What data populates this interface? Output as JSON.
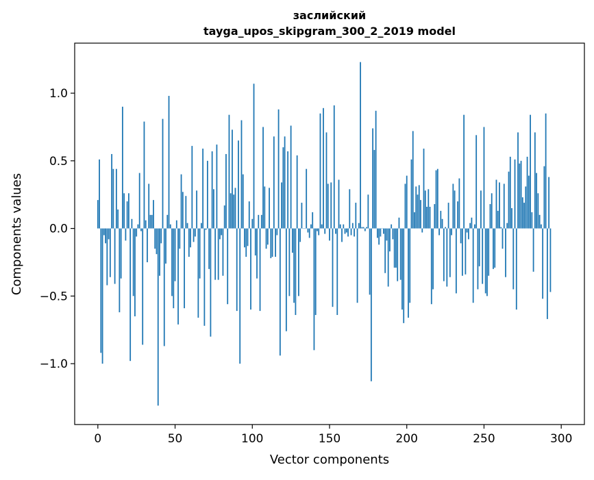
{
  "chart_data": {
    "type": "bar",
    "title_line1": "заслийский",
    "title_line2": "tayga_upos_skipgram_300_2_2019 model",
    "xlabel": "Vector components",
    "ylabel": "Components values",
    "xlim": [
      -15,
      315
    ],
    "ylim": [
      -1.45,
      1.37
    ],
    "xticks": [
      0,
      50,
      100,
      150,
      200,
      250,
      300
    ],
    "xtick_labels": [
      "0",
      "50",
      "100",
      "150",
      "200",
      "250",
      "300"
    ],
    "yticks": [
      -1.0,
      -0.5,
      0.0,
      0.5,
      1.0
    ],
    "ytick_labels": [
      "−1.0",
      "−0.5",
      "0.0",
      "0.5",
      "1.0"
    ],
    "grid": false,
    "bar_color": "#1f77b4",
    "values": [
      0.21,
      0.51,
      -0.92,
      -1.0,
      -0.05,
      -0.11,
      -0.42,
      -0.08,
      -0.36,
      0.55,
      0.44,
      -0.41,
      0.44,
      0.14,
      -0.62,
      -0.37,
      0.9,
      0.26,
      -0.09,
      0.2,
      0.26,
      -0.98,
      0.07,
      -0.5,
      -0.65,
      -0.06,
      0.03,
      0.41,
      -0.02,
      -0.86,
      0.79,
      0.06,
      -0.25,
      0.33,
      0.1,
      0.1,
      0.21,
      -0.15,
      -0.19,
      -1.31,
      -0.35,
      -0.11,
      0.81,
      -0.87,
      -0.26,
      0.1,
      0.98,
      0.03,
      -0.5,
      -0.59,
      -0.39,
      0.06,
      -0.71,
      -0.15,
      0.4,
      0.27,
      -0.59,
      0.24,
      0.04,
      -0.21,
      -0.14,
      0.61,
      -0.1,
      -0.06,
      0.28,
      -0.66,
      -0.37,
      0.04,
      0.59,
      -0.72,
      -0.01,
      0.5,
      -0.3,
      -0.8,
      0.57,
      0.29,
      -0.38,
      0.62,
      -0.38,
      -0.08,
      -0.05,
      -0.35,
      0.17,
      0.55,
      -0.56,
      0.84,
      0.26,
      0.73,
      0.25,
      0.3,
      -0.61,
      0.65,
      -1.0,
      0.8,
      0.4,
      -0.14,
      -0.21,
      -0.13,
      0.2,
      -0.6,
      0.07,
      1.07,
      -0.2,
      -0.37,
      0.1,
      -0.61,
      0.1,
      0.75,
      0.31,
      -0.15,
      -0.12,
      0.3,
      -0.22,
      -0.21,
      0.68,
      -0.21,
      -0.05,
      0.88,
      -0.94,
      0.34,
      0.6,
      0.68,
      -0.76,
      0.57,
      -0.5,
      0.76,
      -0.18,
      -0.55,
      -0.64,
      0.54,
      -0.5,
      -0.1,
      0.19,
      0.0,
      0.0,
      0.44,
      -0.03,
      -0.07,
      0.03,
      0.12,
      -0.9,
      -0.64,
      -0.02,
      -0.05,
      0.85,
      0.03,
      0.89,
      -0.04,
      0.71,
      0.33,
      -0.09,
      0.34,
      -0.58,
      0.91,
      -0.04,
      -0.64,
      0.36,
      0.03,
      -0.1,
      0.03,
      -0.04,
      -0.03,
      -0.06,
      0.29,
      -0.05,
      0.04,
      -0.06,
      0.19,
      -0.55,
      0.04,
      1.23,
      0.01,
      0.01,
      -0.02,
      0.01,
      0.25,
      -0.49,
      -1.13,
      0.74,
      0.58,
      0.87,
      -0.07,
      -0.12,
      -0.06,
      0.0,
      -0.04,
      -0.33,
      -0.09,
      -0.43,
      -0.17,
      0.03,
      -0.08,
      -0.29,
      -0.29,
      -0.39,
      0.08,
      -0.38,
      -0.6,
      -0.7,
      0.33,
      0.39,
      -0.66,
      -0.55,
      0.51,
      0.72,
      0.12,
      0.31,
      0.25,
      0.32,
      0.21,
      -0.03,
      0.59,
      0.28,
      0.16,
      0.29,
      0.16,
      -0.56,
      -0.45,
      0.18,
      0.43,
      0.44,
      -0.05,
      0.13,
      0.07,
      -0.39,
      0.01,
      -0.43,
      0.19,
      -0.36,
      -0.05,
      0.33,
      0.28,
      -0.48,
      0.2,
      0.37,
      -0.11,
      -0.35,
      0.84,
      -0.34,
      -0.03,
      -0.08,
      0.04,
      0.08,
      -0.55,
      0.03,
      0.69,
      -0.45,
      -0.28,
      0.28,
      -0.41,
      0.75,
      -0.48,
      -0.5,
      -0.35,
      0.18,
      0.26,
      -0.3,
      -0.29,
      0.36,
      0.13,
      0.34,
      0.01,
      -0.15,
      0.33,
      -0.36,
      0.04,
      0.42,
      0.53,
      0.15,
      -0.45,
      0.51,
      -0.6,
      0.71,
      0.48,
      0.5,
      0.23,
      0.19,
      0.31,
      0.53,
      0.39,
      0.84,
      0.12,
      -0.32,
      0.71,
      0.41,
      0.26,
      0.1,
      0.03,
      -0.52,
      0.46,
      0.85,
      -0.67,
      0.38,
      -0.47
    ]
  }
}
